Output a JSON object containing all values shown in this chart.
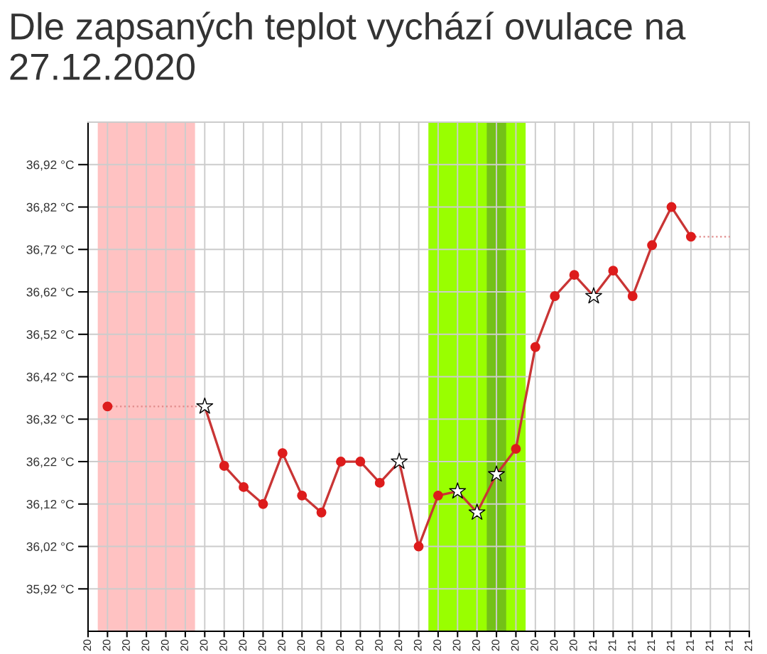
{
  "chart_data": {
    "type": "line",
    "title": "Dle zapsaných teplot vychází ovulace na 27.12.2020",
    "series": [
      {
        "type": "line",
        "color": "#e08a8a",
        "line_style": "dotted",
        "marker": "none",
        "x": [
          "2020-12-07",
          "2020-12-08",
          "2020-12-09",
          "2020-12-10",
          "2020-12-11",
          "2020-12-12",
          "2020-12-13",
          "2021-01-06",
          "2021-01-07",
          "2021-01-08"
        ],
        "values": [
          36.35,
          36.35,
          36.35,
          36.35,
          36.35,
          36.35,
          null,
          36.75,
          36.75,
          36.75
        ]
      },
      {
        "type": "line",
        "color": "#c93535",
        "line_style": "solid",
        "marker": "none",
        "x": [
          "2020-12-12",
          "2020-12-13",
          "2020-12-14",
          "2020-12-15",
          "2020-12-16",
          "2020-12-17",
          "2020-12-18",
          "2020-12-19",
          "2020-12-20",
          "2020-12-21",
          "2020-12-22",
          "2020-12-23",
          "2020-12-24",
          "2020-12-25",
          "2020-12-26",
          "2020-12-27",
          "2020-12-28",
          "2020-12-29",
          "2020-12-30",
          "2020-12-31",
          "2021-01-01",
          "2021-01-02",
          "2021-01-03",
          "2021-01-04",
          "2021-01-05",
          "2021-01-06"
        ],
        "values": [
          36.35,
          36.21,
          36.16,
          36.12,
          36.24,
          36.14,
          36.1,
          36.22,
          36.22,
          36.17,
          36.22,
          36.02,
          36.14,
          36.15,
          36.1,
          36.19,
          36.25,
          36.49,
          36.61,
          36.66,
          36.61,
          36.67,
          36.61,
          36.73,
          36.82,
          36.75
        ]
      },
      {
        "type": "scatter",
        "color": "#dd1c1c",
        "marker": "circle",
        "x": [
          "2020-12-07",
          "2020-12-13",
          "2020-12-14",
          "2020-12-15",
          "2020-12-16",
          "2020-12-17",
          "2020-12-18",
          "2020-12-19",
          "2020-12-20",
          "2020-12-21",
          "2020-12-23",
          "2020-12-24",
          "2020-12-28",
          "2020-12-29",
          "2020-12-30",
          "2020-12-31",
          "2021-01-02",
          "2021-01-03",
          "2021-01-04",
          "2021-01-05",
          "2021-01-06"
        ],
        "values": [
          36.35,
          36.21,
          36.16,
          36.12,
          36.24,
          36.14,
          36.1,
          36.22,
          36.22,
          36.17,
          36.02,
          36.14,
          36.25,
          36.49,
          36.61,
          36.66,
          36.67,
          36.61,
          36.73,
          36.82,
          36.75
        ]
      },
      {
        "type": "scatter",
        "color": "#ffffff",
        "marker": "star",
        "x": [
          "2020-12-12",
          "2020-12-22",
          "2020-12-25",
          "2020-12-26",
          "2020-12-27",
          "2021-01-01"
        ],
        "values": [
          36.35,
          36.22,
          36.15,
          36.1,
          36.19,
          36.61
        ]
      }
    ],
    "bands": [
      {
        "axis": "x",
        "from": "2020-12-06T12:00",
        "to": "2020-12-11T12:00",
        "color": "#ffc2c2"
      },
      {
        "axis": "x",
        "from": "2020-12-23T12:00",
        "to": "2020-12-28T12:00",
        "color": "#99ff00"
      },
      {
        "axis": "x",
        "from": "2020-12-26T12:00",
        "to": "2020-12-27T12:00",
        "color": "#74c118"
      }
    ],
    "xlim": [
      "2020-12-06",
      "2021-01-09"
    ],
    "xticks": [
      {
        "value": "2020-12-06",
        "label": "20"
      },
      {
        "value": "2020-12-07",
        "label": "20"
      },
      {
        "value": "2020-12-08",
        "label": "20"
      },
      {
        "value": "2020-12-09",
        "label": "20"
      },
      {
        "value": "2020-12-10",
        "label": "20"
      },
      {
        "value": "2020-12-11",
        "label": "20"
      },
      {
        "value": "2020-12-12",
        "label": "20"
      },
      {
        "value": "2020-12-13",
        "label": "20"
      },
      {
        "value": "2020-12-14",
        "label": "20"
      },
      {
        "value": "2020-12-15",
        "label": "20"
      },
      {
        "value": "2020-12-16",
        "label": "20"
      },
      {
        "value": "2020-12-17",
        "label": "20"
      },
      {
        "value": "2020-12-18",
        "label": "20"
      },
      {
        "value": "2020-12-19",
        "label": "20"
      },
      {
        "value": "2020-12-20",
        "label": "20"
      },
      {
        "value": "2020-12-21",
        "label": "20"
      },
      {
        "value": "2020-12-22",
        "label": "20"
      },
      {
        "value": "2020-12-23",
        "label": "20"
      },
      {
        "value": "2020-12-24",
        "label": "20"
      },
      {
        "value": "2020-12-25",
        "label": "20"
      },
      {
        "value": "2020-12-26",
        "label": "20"
      },
      {
        "value": "2020-12-27",
        "label": "20"
      },
      {
        "value": "2020-12-28",
        "label": "20"
      },
      {
        "value": "2020-12-29",
        "label": "20"
      },
      {
        "value": "2020-12-30",
        "label": "20"
      },
      {
        "value": "2020-12-31",
        "label": "20"
      },
      {
        "value": "2021-01-01",
        "label": "21"
      },
      {
        "value": "2021-01-02",
        "label": "21"
      },
      {
        "value": "2021-01-03",
        "label": "21"
      },
      {
        "value": "2021-01-04",
        "label": "21"
      },
      {
        "value": "2021-01-05",
        "label": "21"
      },
      {
        "value": "2021-01-06",
        "label": "21"
      },
      {
        "value": "2021-01-07",
        "label": "21"
      },
      {
        "value": "2021-01-08",
        "label": "21"
      },
      {
        "value": "2021-01-09",
        "label": "21"
      }
    ],
    "ylim": [
      35.82,
      37.02
    ],
    "yticks": [
      {
        "value": 35.92,
        "label": "35,92 °C"
      },
      {
        "value": 36.02,
        "label": "36,02 °C"
      },
      {
        "value": 36.12,
        "label": "36,12 °C"
      },
      {
        "value": 36.22,
        "label": "36,22 °C"
      },
      {
        "value": 36.32,
        "label": "36,32 °C"
      },
      {
        "value": 36.42,
        "label": "36,42 °C"
      },
      {
        "value": 36.52,
        "label": "36,52 °C"
      },
      {
        "value": 36.62,
        "label": "36,62 °C"
      },
      {
        "value": 36.72,
        "label": "36,72 °C"
      },
      {
        "value": 36.82,
        "label": "36,82 °C"
      },
      {
        "value": 36.92,
        "label": "36,92 °C"
      }
    ],
    "grid": true
  }
}
